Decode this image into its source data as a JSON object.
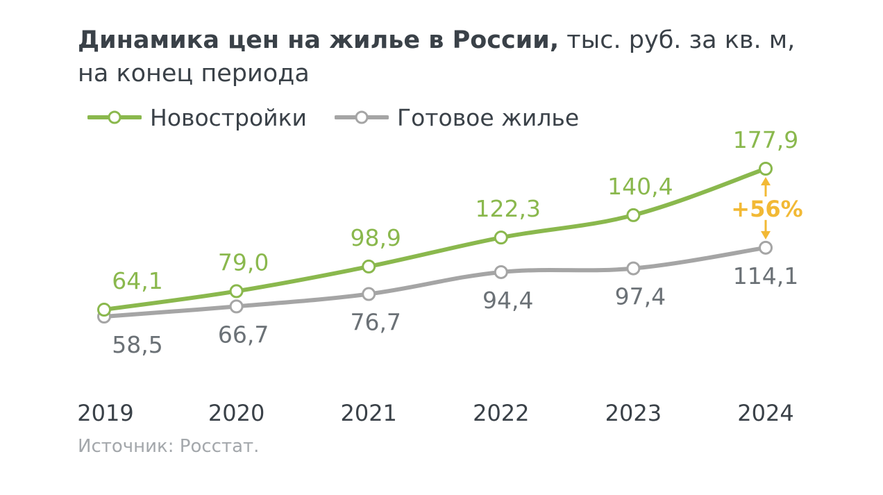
{
  "title": {
    "bold": "Динамика цен на жилье в России,",
    "rest_line1": " тыс. руб. за кв. м,",
    "line2": "на конец периода"
  },
  "source": "Источник: Росстат.",
  "colors": {
    "new": "#8ab84d",
    "secondary": "#a5a5a5",
    "accent": "#f2b935",
    "text": "#3a4148"
  },
  "chart_data": {
    "type": "line",
    "title": "Динамика цен на жилье в России, тыс. руб. за кв. м, на конец периода",
    "x": [
      "2019",
      "2020",
      "2021",
      "2022",
      "2023",
      "2024"
    ],
    "ylim": [
      40,
      190
    ],
    "grid": false,
    "legend_position": "top-left",
    "series": [
      {
        "name": "Новостройки",
        "color": "#8ab84d",
        "values": [
          64.1,
          79.0,
          98.9,
          122.3,
          140.4,
          177.9
        ],
        "labels": [
          "64,1",
          "79,0",
          "98,9",
          "122,3",
          "140,4",
          "177,9"
        ]
      },
      {
        "name": "Готовое жилье",
        "color": "#a5a5a5",
        "values": [
          58.5,
          66.7,
          76.7,
          94.4,
          97.4,
          114.1
        ],
        "labels": [
          "58,5",
          "66,7",
          "76,7",
          "94,4",
          "97,4",
          "114,1"
        ]
      }
    ],
    "annotation": {
      "text": "+56%",
      "x": "2024"
    }
  }
}
